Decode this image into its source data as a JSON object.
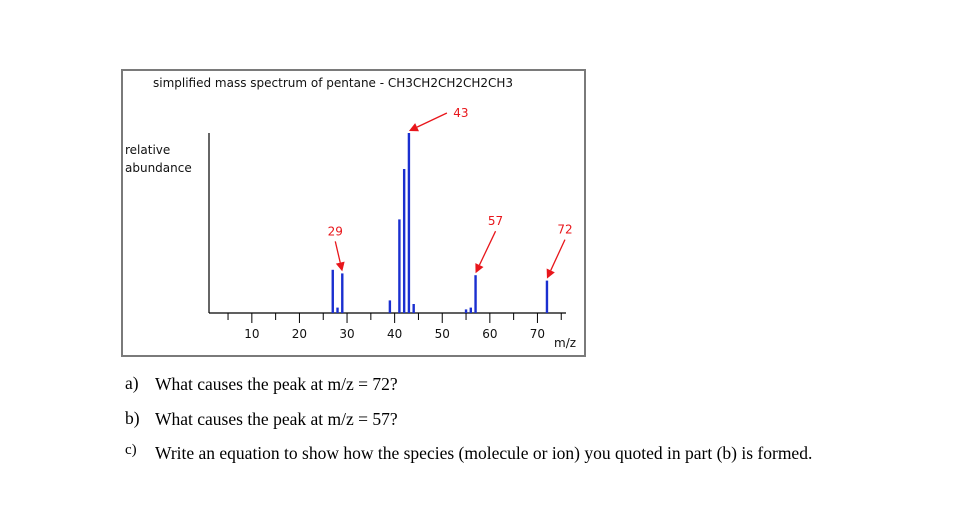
{
  "chart_data": {
    "type": "bar",
    "title": "simplified mass spectrum of pentane  -  CH3CH2CH2CH2CH3",
    "ylabel_lines": [
      "relative",
      "abundance"
    ],
    "xlabel": "m/z",
    "xlim": [
      1,
      76
    ],
    "ylim": [
      0,
      100
    ],
    "x_ticks": [
      10,
      20,
      30,
      40,
      50,
      60,
      70
    ],
    "grid": false,
    "bar_color": "#1a2fd0",
    "annotation_color": "#e8161b",
    "peaks": [
      {
        "mz": 27,
        "abundance": 24
      },
      {
        "mz": 28,
        "abundance": 3
      },
      {
        "mz": 29,
        "abundance": 22
      },
      {
        "mz": 39,
        "abundance": 7
      },
      {
        "mz": 41,
        "abundance": 52
      },
      {
        "mz": 42,
        "abundance": 80
      },
      {
        "mz": 43,
        "abundance": 100
      },
      {
        "mz": 44,
        "abundance": 5
      },
      {
        "mz": 55,
        "abundance": 2
      },
      {
        "mz": 56,
        "abundance": 3
      },
      {
        "mz": 57,
        "abundance": 21
      },
      {
        "mz": 72,
        "abundance": 18
      }
    ],
    "annotations": [
      {
        "label": "29",
        "mz": 29,
        "abundance": 22
      },
      {
        "label": "43",
        "mz": 43,
        "abundance": 100
      },
      {
        "label": "57",
        "mz": 57,
        "abundance": 21
      },
      {
        "label": "72",
        "mz": 72,
        "abundance": 18
      }
    ]
  },
  "questions": [
    {
      "label": "a)",
      "text": "What causes the peak at m/z = 72?"
    },
    {
      "label": "b)",
      "text": "What causes the peak at m/z = 57?"
    },
    {
      "label": "c)",
      "text": "Write an equation to show how the species (molecule or ion) you quoted in part (b) is formed."
    }
  ]
}
